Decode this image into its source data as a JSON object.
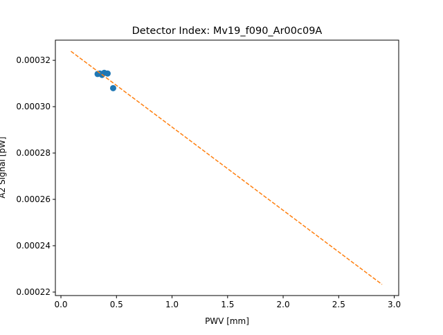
{
  "chart_data": {
    "type": "scatter",
    "title": "Detector Index: Mv19_f090_Ar00c09A",
    "xlabel": "PWV [mm]",
    "ylabel": "A2 Signal [pW]",
    "xlim": [
      -0.05,
      3.04
    ],
    "ylim": [
      0.0002185,
      0.0003287
    ],
    "xticks": [
      0.0,
      0.5,
      1.0,
      1.5,
      2.0,
      2.5,
      3.0
    ],
    "xtick_labels": [
      "0.0",
      "0.5",
      "1.0",
      "1.5",
      "2.0",
      "2.5",
      "3.0"
    ],
    "yticks": [
      0.00022,
      0.00024,
      0.00026,
      0.00028,
      0.0003,
      0.00032
    ],
    "ytick_labels": [
      "0.00022",
      "0.00024",
      "0.00026",
      "0.00028",
      "0.00030",
      "0.00032"
    ],
    "series": [
      {
        "name": "data",
        "kind": "scatter",
        "color": "#1f77b4",
        "x": [
          0.33,
          0.35,
          0.37,
          0.39,
          0.42,
          0.47
        ],
        "y": [
          0.0003141,
          0.0003143,
          0.0003137,
          0.0003146,
          0.0003143,
          0.000308
        ]
      },
      {
        "name": "fit",
        "kind": "dashed-line",
        "color": "#ff7f0e",
        "x": [
          0.09,
          2.89
        ],
        "y": [
          0.0003239,
          0.0002233
        ]
      }
    ]
  }
}
